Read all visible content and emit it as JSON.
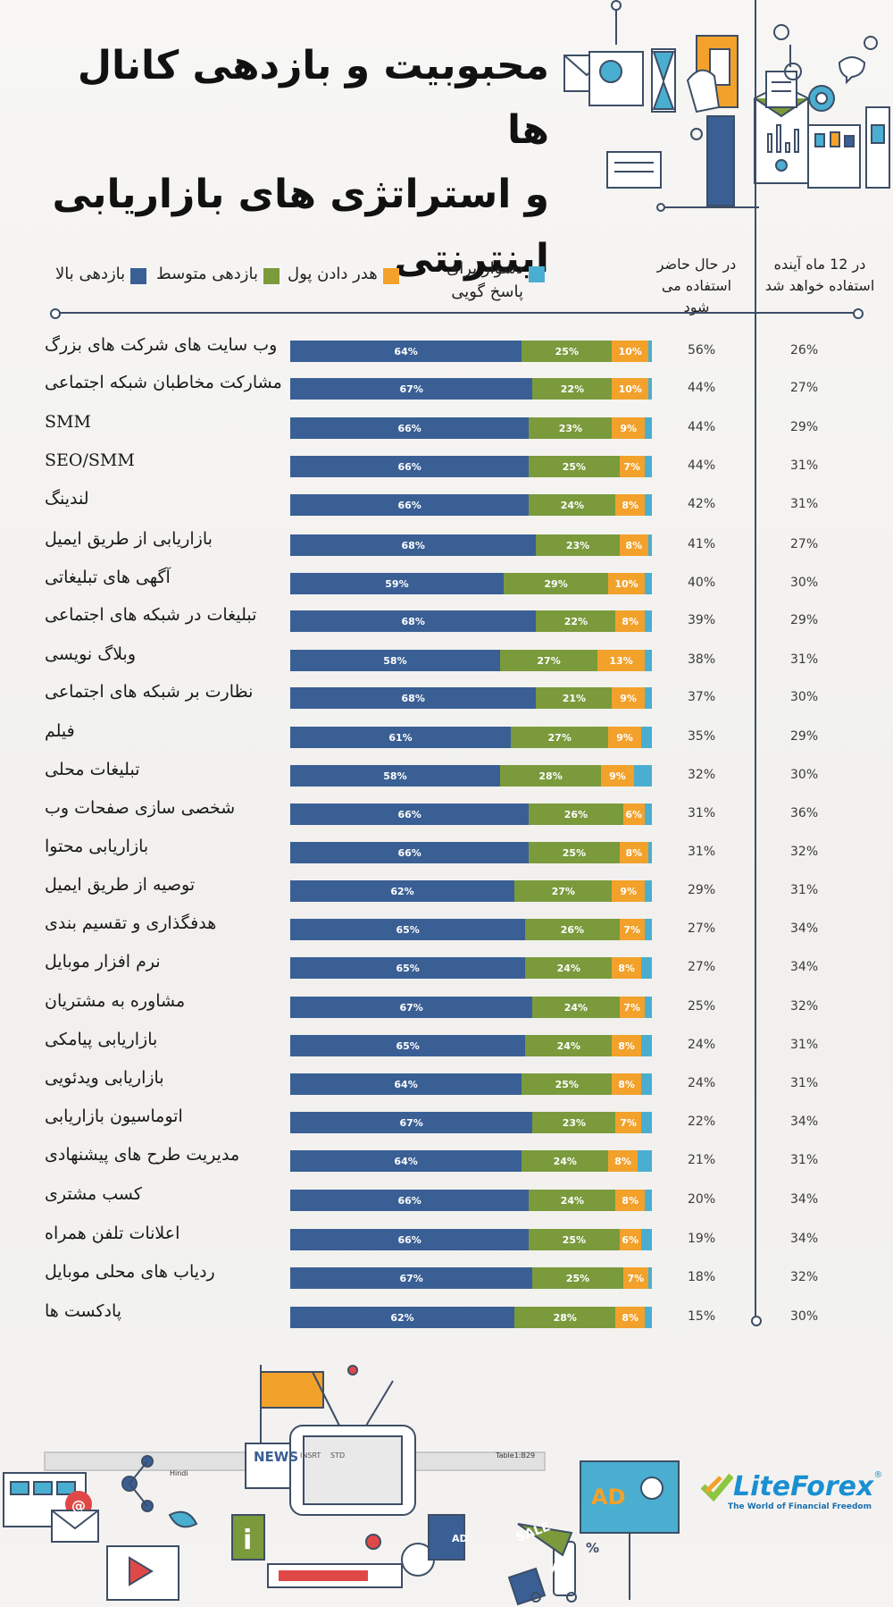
{
  "title_lines": [
    "محبوبیت و بازدهی کانال ها",
    "و استراتژی های بازاریابی",
    "اینترنتی"
  ],
  "legend": [
    {
      "label": "بازدهی بالا",
      "color": "#3a5f95"
    },
    {
      "label": "بازدهی متوسط",
      "color": "#7a9a3c"
    },
    {
      "label": "هدر دادن پول",
      "color": "#f2a12b"
    },
    {
      "label": "دشوار برای پاسخ گویی",
      "color": "#4aaed0"
    }
  ],
  "columns": {
    "now": "در حال حاضر استفاده می شود",
    "future": "در 12 ماه آینده استفاده خواهد شد"
  },
  "chart_data": {
    "type": "bar",
    "stacked": true,
    "orientation": "horizontal",
    "categories": [
      "وب سایت های شرکت های بزرگ",
      "مشارکت مخاطبان شبکه اجتماعی",
      "SMM",
      "SEO/SMM",
      "لندینگ",
      "بازاریابی از طریق ایمیل",
      "آگهی های تبلیغاتی",
      "تبلیغات در شبکه های اجتماعی",
      "وبلاگ نویسی",
      "نظارت بر شبکه های اجتماعی",
      "فیلم",
      "تبلیغات محلی",
      "شخصی سازی صفحات وب",
      "بازاریابی محتوا",
      "توصیه از طریق ایمیل",
      "هدفگذاری و تقسیم بندی",
      "نرم افزار موبایل",
      "مشاوره به مشتریان",
      "بازاریابی پیامکی",
      "بازاریابی ویدئویی",
      "اتوماسیون بازاریابی",
      "مدیریت طرح های پیشنهادی",
      "کسب مشتری",
      "اعلانات تلفن همراه",
      "ردیاب های محلی موبایل",
      "پادکست ها"
    ],
    "series": [
      {
        "name": "بازدهی بالا",
        "values": [
          64,
          67,
          66,
          66,
          66,
          68,
          59,
          68,
          58,
          68,
          61,
          58,
          66,
          66,
          62,
          65,
          65,
          67,
          65,
          64,
          67,
          64,
          66,
          66,
          67,
          62
        ]
      },
      {
        "name": "بازدهی متوسط",
        "values": [
          25,
          22,
          23,
          25,
          24,
          23,
          29,
          22,
          27,
          21,
          27,
          28,
          26,
          25,
          27,
          26,
          24,
          24,
          24,
          25,
          23,
          24,
          24,
          25,
          25,
          28
        ]
      },
      {
        "name": "هدر دادن پول",
        "values": [
          10,
          10,
          9,
          7,
          8,
          8,
          10,
          8,
          13,
          9,
          9,
          9,
          6,
          8,
          9,
          7,
          8,
          7,
          8,
          8,
          7,
          8,
          8,
          6,
          7,
          8
        ]
      },
      {
        "name": "دشوار برای پاسخ گویی",
        "values": [
          1,
          1,
          2,
          2,
          2,
          1,
          2,
          2,
          2,
          2,
          3,
          5,
          2,
          1,
          2,
          2,
          3,
          2,
          3,
          3,
          3,
          4,
          2,
          3,
          1,
          2
        ]
      }
    ],
    "labels": {
      "high": [
        "64%",
        "67%",
        "66%",
        "66%",
        "66%",
        "68%",
        "59%",
        "68%",
        "58%",
        "68%",
        "61%",
        "58%",
        "66%",
        "66%",
        "62%",
        "65%",
        "65%",
        "67%",
        "65%",
        "64%",
        "67%",
        "64%",
        "66%",
        "66%",
        "67%",
        "62%"
      ],
      "mid": [
        "25%",
        "22%",
        "23%",
        "25%",
        "24%",
        "23%",
        "29%",
        "22%",
        "27%",
        "21%",
        "27%",
        "28%",
        "26%",
        "25%",
        "27%",
        "26%",
        "24%",
        "24%",
        "24%",
        "25%",
        "23%",
        "24%",
        "24%",
        "25%",
        "25%",
        "28%"
      ],
      "waste": [
        "10%",
        "10%",
        "9%",
        "7%",
        "8%",
        "8%",
        "10%",
        "8%",
        "13%",
        "9%",
        "9%",
        "9%",
        "6%",
        "8%",
        "9%",
        "7%",
        "8%",
        "7%",
        "8%",
        "8%",
        "7%",
        "8%",
        "8%",
        "6%",
        "7%",
        "8%"
      ]
    },
    "now": [
      "56%",
      "44%",
      "44%",
      "44%",
      "42%",
      "41%",
      "40%",
      "39%",
      "38%",
      "37%",
      "35%",
      "32%",
      "31%",
      "31%",
      "29%",
      "27%",
      "27%",
      "25%",
      "24%",
      "24%",
      "22%",
      "21%",
      "20%",
      "19%",
      "18%",
      "15%"
    ],
    "future": [
      "26%",
      "27%",
      "29%",
      "31%",
      "31%",
      "27%",
      "30%",
      "29%",
      "31%",
      "30%",
      "29%",
      "30%",
      "36%",
      "32%",
      "31%",
      "34%",
      "34%",
      "32%",
      "31%",
      "31%",
      "34%",
      "31%",
      "34%",
      "34%",
      "32%",
      "30%"
    ],
    "xlim": [
      0,
      100
    ]
  },
  "footer_labels": {
    "news": "NEWS",
    "ad1": "AD",
    "ad2": "AD",
    "ad3": "AD",
    "sale": "SALE",
    "percent": "%",
    "info": "i",
    "at": "@",
    "hindi": "Hindi",
    "insert": "INSRT",
    "std": "STD",
    "table_ref": "Table1:B29"
  },
  "logo": {
    "name": "LiteForex",
    "reg": "®",
    "tagline": "The World of Financial Freedom"
  },
  "colors": {
    "high": "#3a5f95",
    "mid": "#7a9a3c",
    "waste": "#f2a12b",
    "hard": "#4aaed0",
    "line": "#3d4e66"
  }
}
